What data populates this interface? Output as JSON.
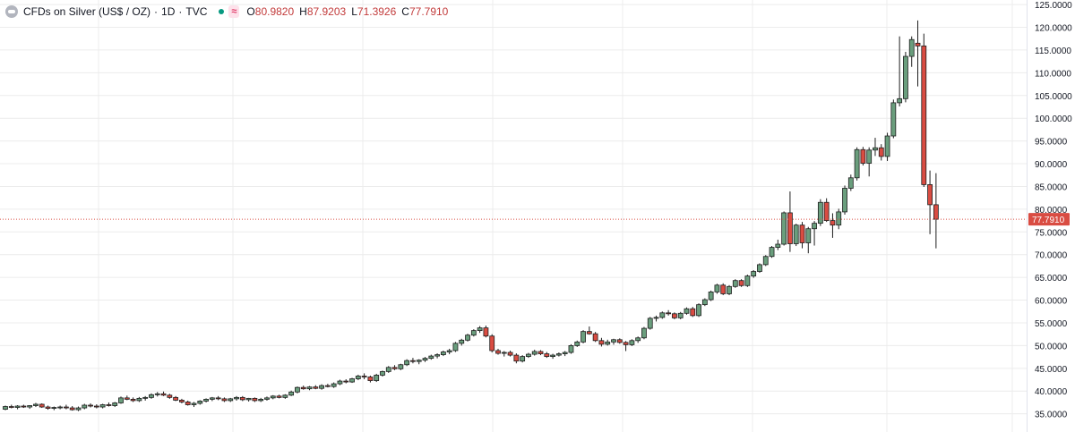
{
  "header": {
    "symbol": "CFDs on Silver (US$ / OZ)",
    "interval": "1D",
    "source": "TVC",
    "market_status_icon": "green-dot-icon",
    "indicator_badge": "≈",
    "ohlc": [
      {
        "key": "O",
        "value": "80.9820"
      },
      {
        "key": "H",
        "value": "87.9203"
      },
      {
        "key": "L",
        "value": "71.3926"
      },
      {
        "key": "C",
        "value": "77.7910"
      }
    ]
  },
  "colors": {
    "up": "#6a9e7d",
    "down": "#d94c42",
    "outline": "#1e1e1e",
    "last_price": "#d94c42",
    "grid": "#ececec",
    "axis_text": "#131722"
  },
  "chart_data": {
    "type": "candlestick",
    "y_axis": {
      "ticks": [
        "35.0000",
        "40.0000",
        "45.0000",
        "50.0000",
        "55.0000",
        "60.0000",
        "65.0000",
        "70.0000",
        "75.0000",
        "80.0000",
        "85.0000",
        "90.0000",
        "95.0000",
        "100.0000",
        "105.0000",
        "110.0000",
        "115.0000",
        "120.0000",
        "125.0000"
      ],
      "range": [
        31.0,
        126.0
      ],
      "position": "right"
    },
    "last_price": {
      "value": 77.791,
      "label": "77.7910"
    },
    "grid": true,
    "candles": [
      [
        36.0,
        36.8,
        35.8,
        36.6
      ],
      [
        36.6,
        37.0,
        36.2,
        36.4
      ],
      [
        36.4,
        36.9,
        36.0,
        36.7
      ],
      [
        36.7,
        37.0,
        36.3,
        36.5
      ],
      [
        36.5,
        36.9,
        36.1,
        36.8
      ],
      [
        36.8,
        37.4,
        36.5,
        37.1
      ],
      [
        37.1,
        37.3,
        36.3,
        36.5
      ],
      [
        36.5,
        36.8,
        35.9,
        36.2
      ],
      [
        36.2,
        36.6,
        35.8,
        36.4
      ],
      [
        36.4,
        36.8,
        36.0,
        36.5
      ],
      [
        36.5,
        37.0,
        36.0,
        36.3
      ],
      [
        36.3,
        36.7,
        35.7,
        35.9
      ],
      [
        35.9,
        36.6,
        35.6,
        36.3
      ],
      [
        36.3,
        37.2,
        36.0,
        36.9
      ],
      [
        36.9,
        37.3,
        36.4,
        36.7
      ],
      [
        36.7,
        37.1,
        36.2,
        36.5
      ],
      [
        36.5,
        37.2,
        36.2,
        37.0
      ],
      [
        37.0,
        37.5,
        36.6,
        36.8
      ],
      [
        36.8,
        37.6,
        36.5,
        37.4
      ],
      [
        37.4,
        38.8,
        37.2,
        38.5
      ],
      [
        38.5,
        39.0,
        38.0,
        38.2
      ],
      [
        38.2,
        38.6,
        37.6,
        37.9
      ],
      [
        37.9,
        38.7,
        37.6,
        38.4
      ],
      [
        38.4,
        38.9,
        37.9,
        38.6
      ],
      [
        38.6,
        39.5,
        38.3,
        39.2
      ],
      [
        39.2,
        39.8,
        38.8,
        39.4
      ],
      [
        39.4,
        39.9,
        38.9,
        39.1
      ],
      [
        39.1,
        39.4,
        38.3,
        38.6
      ],
      [
        38.6,
        38.9,
        37.8,
        38.0
      ],
      [
        38.0,
        38.3,
        37.3,
        37.6
      ],
      [
        37.6,
        37.9,
        36.8,
        37.0
      ],
      [
        37.0,
        37.6,
        36.5,
        37.3
      ],
      [
        37.3,
        38.0,
        37.0,
        37.8
      ],
      [
        37.8,
        38.4,
        37.5,
        38.2
      ],
      [
        38.2,
        38.7,
        37.8,
        38.5
      ],
      [
        38.5,
        38.9,
        38.0,
        38.3
      ],
      [
        38.3,
        38.6,
        37.6,
        37.9
      ],
      [
        37.9,
        38.5,
        37.6,
        38.3
      ],
      [
        38.3,
        38.9,
        37.9,
        38.6
      ],
      [
        38.6,
        38.9,
        37.8,
        38.1
      ],
      [
        38.1,
        38.5,
        37.7,
        38.4
      ],
      [
        38.4,
        38.6,
        37.6,
        37.9
      ],
      [
        37.9,
        38.5,
        37.6,
        38.2
      ],
      [
        38.2,
        38.8,
        37.9,
        38.5
      ],
      [
        38.5,
        39.1,
        38.2,
        38.9
      ],
      [
        38.9,
        39.2,
        38.4,
        38.6
      ],
      [
        38.6,
        39.3,
        38.3,
        39.1
      ],
      [
        39.1,
        40.1,
        38.9,
        39.8
      ],
      [
        39.8,
        41.0,
        39.5,
        40.8
      ],
      [
        40.8,
        41.2,
        40.3,
        40.5
      ],
      [
        40.5,
        41.1,
        40.2,
        40.9
      ],
      [
        40.9,
        41.3,
        40.4,
        40.6
      ],
      [
        40.6,
        41.5,
        40.3,
        41.2
      ],
      [
        41.2,
        41.6,
        40.8,
        41.0
      ],
      [
        41.0,
        41.9,
        40.7,
        41.6
      ],
      [
        41.6,
        42.5,
        41.3,
        42.2
      ],
      [
        42.2,
        42.6,
        41.7,
        42.0
      ],
      [
        42.0,
        42.9,
        41.8,
        42.7
      ],
      [
        42.7,
        43.6,
        42.4,
        43.3
      ],
      [
        43.3,
        43.9,
        42.6,
        43.1
      ],
      [
        43.1,
        43.4,
        41.9,
        42.3
      ],
      [
        42.3,
        43.8,
        42.0,
        43.5
      ],
      [
        43.5,
        44.5,
        43.2,
        44.3
      ],
      [
        44.3,
        45.5,
        44.0,
        45.2
      ],
      [
        45.2,
        45.7,
        44.6,
        44.9
      ],
      [
        44.9,
        46.0,
        44.6,
        45.8
      ],
      [
        45.8,
        47.0,
        45.5,
        46.7
      ],
      [
        46.7,
        47.3,
        46.1,
        46.5
      ],
      [
        46.5,
        47.0,
        45.9,
        46.8
      ],
      [
        46.8,
        47.5,
        46.4,
        47.2
      ],
      [
        47.2,
        48.0,
        46.9,
        47.7
      ],
      [
        47.7,
        48.3,
        47.2,
        48.0
      ],
      [
        48.0,
        48.9,
        47.7,
        48.6
      ],
      [
        48.6,
        49.3,
        48.1,
        48.9
      ],
      [
        48.9,
        50.8,
        48.6,
        50.5
      ],
      [
        50.5,
        51.5,
        50.0,
        51.2
      ],
      [
        51.2,
        52.6,
        50.9,
        52.3
      ],
      [
        52.3,
        53.6,
        52.0,
        53.3
      ],
      [
        53.3,
        54.3,
        52.8,
        53.9
      ],
      [
        53.9,
        54.4,
        51.8,
        52.1
      ],
      [
        52.1,
        52.5,
        48.5,
        48.9
      ],
      [
        48.9,
        49.3,
        48.0,
        48.3
      ],
      [
        48.3,
        48.8,
        47.6,
        48.5
      ],
      [
        48.5,
        48.9,
        47.6,
        47.9
      ],
      [
        47.9,
        48.3,
        46.1,
        46.6
      ],
      [
        46.6,
        47.9,
        46.3,
        47.6
      ],
      [
        47.6,
        48.4,
        47.3,
        48.1
      ],
      [
        48.1,
        49.1,
        47.8,
        48.7
      ],
      [
        48.7,
        49.0,
        47.9,
        48.2
      ],
      [
        48.2,
        48.6,
        47.3,
        47.6
      ],
      [
        47.6,
        48.2,
        47.1,
        47.9
      ],
      [
        47.9,
        48.5,
        47.6,
        48.2
      ],
      [
        48.2,
        48.8,
        47.7,
        48.5
      ],
      [
        48.5,
        50.3,
        48.2,
        50.0
      ],
      [
        50.0,
        51.1,
        49.7,
        50.8
      ],
      [
        50.8,
        53.4,
        50.5,
        53.1
      ],
      [
        53.1,
        54.2,
        52.4,
        52.6
      ],
      [
        52.6,
        53.0,
        50.8,
        51.1
      ],
      [
        51.1,
        51.7,
        49.8,
        50.3
      ],
      [
        50.3,
        51.3,
        50.0,
        50.8
      ],
      [
        50.8,
        51.5,
        50.2,
        51.3
      ],
      [
        51.3,
        51.6,
        50.4,
        50.7
      ],
      [
        50.7,
        51.0,
        48.8,
        50.2
      ],
      [
        50.2,
        51.4,
        49.9,
        51.1
      ],
      [
        51.1,
        52.0,
        50.6,
        51.7
      ],
      [
        51.7,
        54.1,
        51.4,
        53.8
      ],
      [
        53.8,
        56.3,
        53.5,
        56.0
      ],
      [
        56.0,
        56.6,
        55.3,
        56.2
      ],
      [
        56.2,
        57.5,
        55.9,
        57.2
      ],
      [
        57.2,
        57.8,
        56.6,
        57.0
      ],
      [
        57.0,
        57.3,
        55.8,
        56.1
      ],
      [
        56.1,
        57.4,
        55.8,
        57.1
      ],
      [
        57.1,
        58.4,
        56.8,
        58.1
      ],
      [
        58.1,
        58.5,
        56.3,
        56.6
      ],
      [
        56.6,
        59.3,
        56.3,
        59.0
      ],
      [
        59.0,
        60.4,
        58.7,
        60.1
      ],
      [
        60.1,
        62.1,
        59.8,
        61.8
      ],
      [
        61.8,
        63.6,
        61.4,
        63.3
      ],
      [
        63.3,
        63.7,
        61.1,
        61.4
      ],
      [
        61.4,
        63.3,
        61.1,
        63.0
      ],
      [
        63.0,
        64.6,
        62.7,
        64.3
      ],
      [
        64.3,
        64.6,
        62.9,
        63.2
      ],
      [
        63.2,
        65.6,
        62.9,
        65.3
      ],
      [
        65.3,
        66.6,
        64.9,
        66.3
      ],
      [
        66.3,
        68.1,
        66.0,
        67.8
      ],
      [
        67.8,
        69.9,
        67.5,
        69.6
      ],
      [
        69.6,
        71.9,
        69.3,
        71.6
      ],
      [
        71.6,
        73.3,
        71.0,
        72.3
      ],
      [
        72.3,
        79.5,
        72.0,
        79.2
      ],
      [
        79.2,
        83.9,
        70.6,
        72.4
      ],
      [
        72.4,
        76.8,
        71.9,
        76.5
      ],
      [
        76.5,
        77.2,
        71.4,
        72.6
      ],
      [
        72.6,
        76.1,
        70.3,
        75.7
      ],
      [
        75.7,
        77.4,
        72.0,
        76.9
      ],
      [
        76.9,
        82.2,
        76.3,
        81.5
      ],
      [
        81.5,
        82.4,
        77.2,
        77.5
      ],
      [
        77.5,
        79.1,
        73.7,
        76.5
      ],
      [
        76.5,
        80.1,
        75.6,
        79.4
      ],
      [
        79.4,
        85.2,
        78.8,
        84.6
      ],
      [
        84.6,
        87.6,
        84.0,
        86.9
      ],
      [
        86.9,
        93.6,
        86.3,
        93.1
      ],
      [
        93.1,
        93.7,
        89.6,
        90.1
      ],
      [
        90.1,
        93.6,
        87.2,
        93.0
      ],
      [
        93.0,
        95.7,
        91.7,
        93.5
      ],
      [
        93.5,
        94.3,
        90.7,
        91.6
      ],
      [
        91.6,
        96.8,
        90.6,
        96.1
      ],
      [
        96.1,
        104.1,
        95.6,
        103.4
      ],
      [
        103.4,
        118.0,
        102.6,
        104.3
      ],
      [
        104.3,
        114.6,
        103.5,
        113.6
      ],
      [
        113.6,
        118.0,
        111.3,
        117.3
      ],
      [
        116.5,
        121.5,
        107.0,
        115.9
      ],
      [
        115.9,
        118.6,
        84.9,
        85.4
      ],
      [
        85.4,
        88.5,
        74.5,
        80.98
      ],
      [
        80.98,
        87.92,
        71.39,
        77.79
      ]
    ]
  }
}
